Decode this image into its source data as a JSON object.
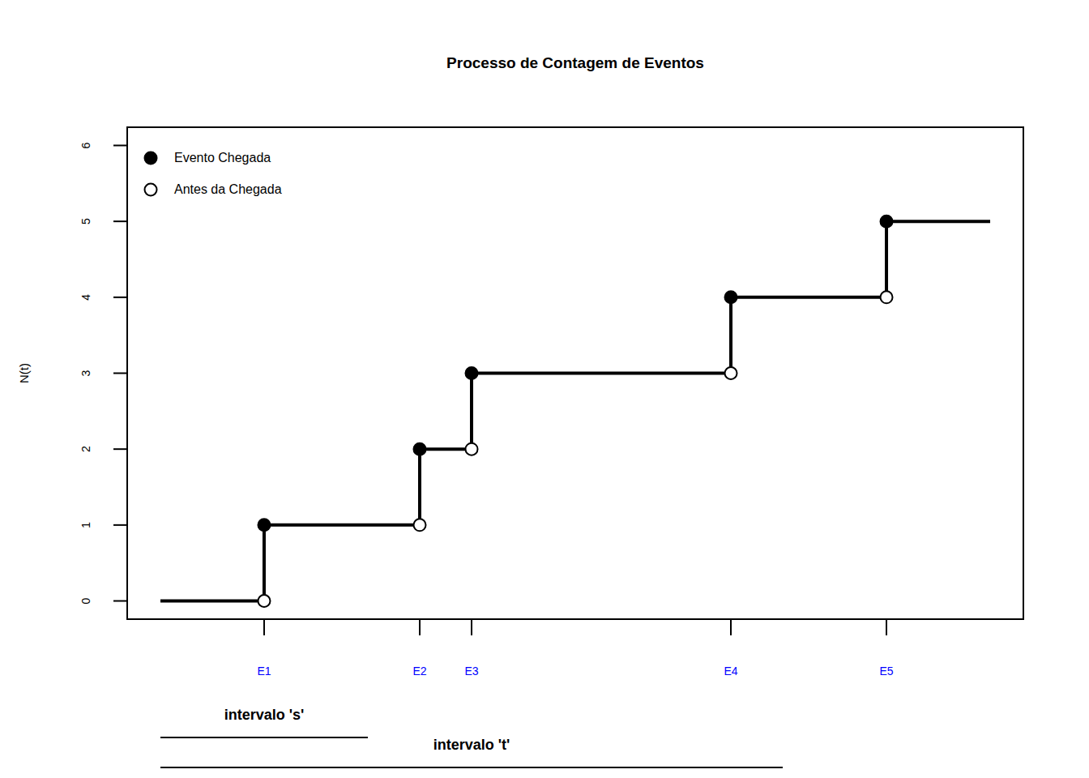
{
  "chart_data": {
    "type": "step",
    "title": "Processo de Contagem de Eventos",
    "y_label": "N(t)",
    "line": {
      "x": [
        0,
        1,
        2.5,
        3,
        5.5,
        7,
        8
      ],
      "values": [
        0,
        1,
        2,
        3,
        4,
        5,
        5
      ],
      "color": "#000000"
    },
    "series": [
      {
        "name": "Evento Chegada",
        "marker": "filled",
        "color": "#000000",
        "x": [
          1,
          2.5,
          3,
          5.5,
          7
        ],
        "values": [
          1,
          2,
          3,
          4,
          5
        ]
      },
      {
        "name": "Antes da Chegada",
        "marker": "open",
        "color": "#000000",
        "x": [
          1,
          2.5,
          3,
          5.5,
          7
        ],
        "values": [
          0,
          1,
          2,
          3,
          4
        ]
      }
    ],
    "xlim": [
      -0.32,
      8.32
    ],
    "xticks": [
      {
        "value": 1,
        "label": "E1"
      },
      {
        "value": 2.5,
        "label": "E2"
      },
      {
        "value": 3,
        "label": "E3"
      },
      {
        "value": 5.5,
        "label": "E4"
      },
      {
        "value": 7,
        "label": "E5"
      }
    ],
    "tick_label_color": "#0000ff",
    "ylim": [
      -0.24,
      6.24
    ],
    "yticks": [
      0,
      1,
      2,
      3,
      4,
      5,
      6
    ],
    "legend": "top-left",
    "intervals": [
      {
        "label": "intervalo 's'",
        "start": 0,
        "end": 2
      },
      {
        "label": "intervalo 't'",
        "start": 0,
        "end": 6
      }
    ]
  }
}
